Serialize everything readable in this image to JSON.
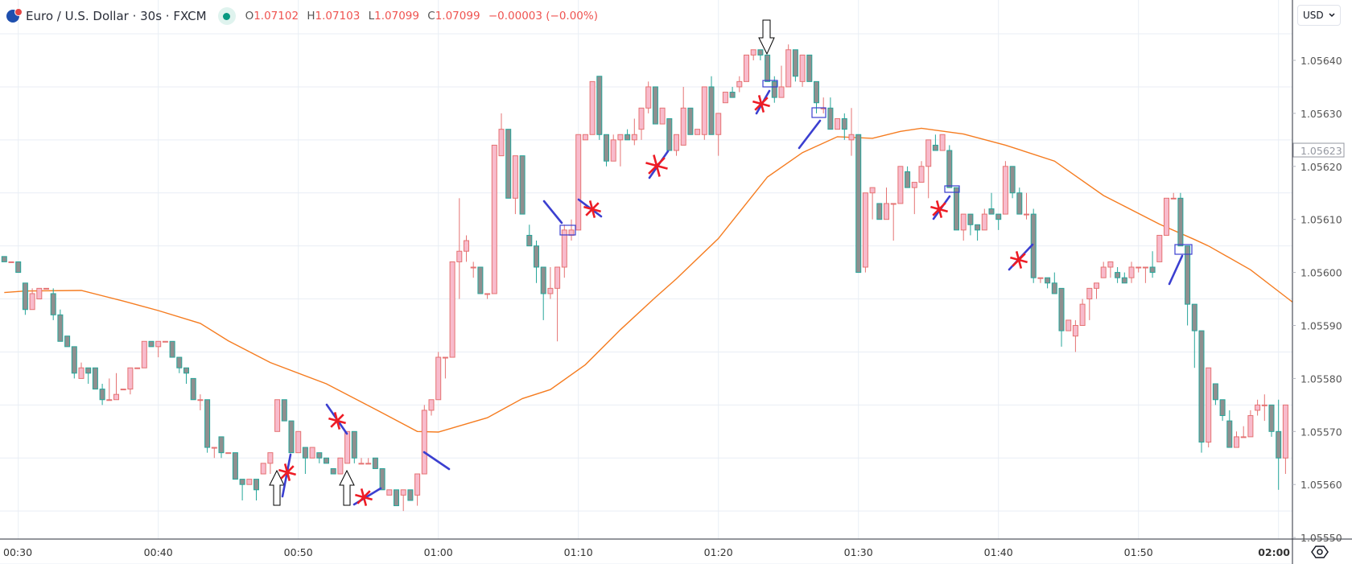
{
  "header": {
    "title": "Euro / U.S. Dollar · 30s · FXCM",
    "open_label": "O",
    "open": "1.07102",
    "high_label": "H",
    "high": "1.07103",
    "low_label": "L",
    "low": "1.07099",
    "close_label": "C",
    "close": "1.07099",
    "change": "−0.00003 (−0.00%)",
    "market_status": "open"
  },
  "currency_button": {
    "label": "USD",
    "icon": "chevron-down-icon"
  },
  "settings_icon": "eye-icon",
  "colors": {
    "up_fill": "#f8bbcc",
    "up_border": "#e57373",
    "down_fill": "#8f8f8f",
    "down_border": "#26a69a",
    "ema": "#f57c20",
    "annotation_blue": "#3b3fd0",
    "annotation_red": "#ee1c25",
    "grid": "#e9eef5"
  },
  "chart_data": {
    "type": "candlestick",
    "interval_seconds": 30,
    "x_start": "00:29:00",
    "ylim": [
      1.05545,
      1.0565
    ],
    "grid": true,
    "price_ticks": [
      "1.05640",
      "1.05630",
      "1.05620",
      "1.05610",
      "1.05600",
      "1.05590",
      "1.05580",
      "1.05570",
      "1.05560",
      "1.05550"
    ],
    "current_price_label": "1.05623",
    "time_ticks": [
      "00:30",
      "00:40",
      "00:50",
      "01:00",
      "01:10",
      "01:20",
      "01:30",
      "01:40",
      "01:50",
      "02:00"
    ],
    "ohlc": [
      [
        1.05603,
        1.05603,
        1.05602,
        1.05602
      ],
      [
        1.05602,
        1.05602,
        1.05602,
        1.05602
      ],
      [
        1.05602,
        1.05602,
        1.056,
        1.056
      ],
      [
        1.05598,
        1.05598,
        1.05592,
        1.05593
      ],
      [
        1.05593,
        1.05597,
        1.05593,
        1.05596
      ],
      [
        1.05595,
        1.05597,
        1.05595,
        1.05597
      ],
      [
        1.05597,
        1.05597,
        1.05597,
        1.05597
      ],
      [
        1.05596,
        1.05597,
        1.05591,
        1.05592
      ],
      [
        1.05592,
        1.05593,
        1.05587,
        1.05587
      ],
      [
        1.05588,
        1.05588,
        1.05586,
        1.05586
      ],
      [
        1.05586,
        1.05586,
        1.0558,
        1.05581
      ],
      [
        1.0558,
        1.05583,
        1.0558,
        1.05582
      ],
      [
        1.05582,
        1.05582,
        1.05579,
        1.05581
      ],
      [
        1.05582,
        1.05582,
        1.05578,
        1.05578
      ],
      [
        1.05578,
        1.05579,
        1.05575,
        1.05576
      ],
      [
        1.05576,
        1.0558,
        1.05576,
        1.05576
      ],
      [
        1.05576,
        1.05581,
        1.05576,
        1.05577
      ],
      [
        1.05578,
        1.05578,
        1.05578,
        1.05578
      ],
      [
        1.05578,
        1.05582,
        1.05577,
        1.05582
      ],
      [
        1.05582,
        1.05582,
        1.05582,
        1.05582
      ],
      [
        1.05582,
        1.05587,
        1.05582,
        1.05587
      ],
      [
        1.05587,
        1.05587,
        1.05586,
        1.05586
      ],
      [
        1.05586,
        1.05587,
        1.05584,
        1.05587
      ],
      [
        1.05587,
        1.05587,
        1.05587,
        1.05587
      ],
      [
        1.05587,
        1.05587,
        1.05584,
        1.05584
      ],
      [
        1.05584,
        1.05584,
        1.05581,
        1.05582
      ],
      [
        1.05582,
        1.05582,
        1.05579,
        1.05581
      ],
      [
        1.0558,
        1.0558,
        1.05576,
        1.05576
      ],
      [
        1.05576,
        1.05577,
        1.05574,
        1.05576
      ],
      [
        1.05576,
        1.05576,
        1.05566,
        1.05567
      ],
      [
        1.05567,
        1.05567,
        1.05565,
        1.05567
      ],
      [
        1.05569,
        1.05569,
        1.05565,
        1.05566
      ],
      [
        1.05566,
        1.05566,
        1.05566,
        1.05566
      ],
      [
        1.05566,
        1.05566,
        1.05561,
        1.05561
      ],
      [
        1.05561,
        1.05561,
        1.05557,
        1.0556
      ],
      [
        1.0556,
        1.05561,
        1.0556,
        1.05561
      ],
      [
        1.05561,
        1.05561,
        1.05557,
        1.05559
      ],
      [
        1.05562,
        1.05564,
        1.05562,
        1.05564
      ],
      [
        1.05564,
        1.05566,
        1.05562,
        1.05566
      ],
      [
        1.0557,
        1.05576,
        1.0557,
        1.05576
      ],
      [
        1.05576,
        1.05576,
        1.05572,
        1.05572
      ],
      [
        1.05572,
        1.05572,
        1.05566,
        1.05566
      ],
      [
        1.05566,
        1.0557,
        1.05566,
        1.0557
      ],
      [
        1.05567,
        1.05567,
        1.05562,
        1.05565
      ],
      [
        1.05565,
        1.05567,
        1.05565,
        1.05567
      ],
      [
        1.05566,
        1.05566,
        1.05564,
        1.05565
      ],
      [
        1.05565,
        1.05565,
        1.05564,
        1.05564
      ],
      [
        1.05563,
        1.05563,
        1.05562,
        1.05562
      ],
      [
        1.05562,
        1.05565,
        1.05562,
        1.05565
      ],
      [
        1.05564,
        1.0557,
        1.05564,
        1.0557
      ],
      [
        1.0557,
        1.0557,
        1.05564,
        1.05565
      ],
      [
        1.05564,
        1.05565,
        1.05564,
        1.05564
      ],
      [
        1.05564,
        1.05565,
        1.05564,
        1.05564
      ],
      [
        1.05565,
        1.05565,
        1.05563,
        1.05563
      ],
      [
        1.05563,
        1.05563,
        1.05559,
        1.05559
      ],
      [
        1.05558,
        1.05559,
        1.05558,
        1.05559
      ],
      [
        1.05559,
        1.05559,
        1.05556,
        1.05556
      ],
      [
        1.05558,
        1.05559,
        1.05555,
        1.05559
      ],
      [
        1.05559,
        1.05559,
        1.05557,
        1.05557
      ],
      [
        1.05558,
        1.05562,
        1.05556,
        1.05562
      ],
      [
        1.05562,
        1.05575,
        1.05562,
        1.05574
      ],
      [
        1.05574,
        1.05576,
        1.05573,
        1.05576
      ],
      [
        1.05576,
        1.05585,
        1.05576,
        1.05584
      ],
      [
        1.05584,
        1.05584,
        1.0558,
        1.05584
      ],
      [
        1.05584,
        1.05602,
        1.05584,
        1.05602
      ],
      [
        1.05602,
        1.05614,
        1.05595,
        1.05604
      ],
      [
        1.05604,
        1.05607,
        1.05602,
        1.05606
      ],
      [
        1.05601,
        1.05602,
        1.05599,
        1.05601
      ],
      [
        1.05601,
        1.05601,
        1.05596,
        1.05596
      ],
      [
        1.05596,
        1.05596,
        1.05595,
        1.05596
      ],
      [
        1.05596,
        1.05624,
        1.05596,
        1.05624
      ],
      [
        1.05622,
        1.0563,
        1.05622,
        1.05627
      ],
      [
        1.05627,
        1.05627,
        1.05614,
        1.05614
      ],
      [
        1.05614,
        1.05622,
        1.05611,
        1.05622
      ],
      [
        1.05622,
        1.05622,
        1.05611,
        1.05611
      ],
      [
        1.05607,
        1.05609,
        1.05605,
        1.05605
      ],
      [
        1.05605,
        1.05606,
        1.05598,
        1.05601
      ],
      [
        1.05601,
        1.05601,
        1.05591,
        1.05596
      ],
      [
        1.05596,
        1.05601,
        1.05595,
        1.05597
      ],
      [
        1.05597,
        1.05601,
        1.05587,
        1.05601
      ],
      [
        1.05601,
        1.05609,
        1.05599,
        1.05608
      ],
      [
        1.05607,
        1.0561,
        1.05606,
        1.05608
      ],
      [
        1.05608,
        1.05626,
        1.05608,
        1.05626
      ],
      [
        1.05625,
        1.05626,
        1.05625,
        1.05626
      ],
      [
        1.05626,
        1.05636,
        1.05626,
        1.05636
      ],
      [
        1.05637,
        1.05637,
        1.05625,
        1.05626
      ],
      [
        1.05626,
        1.05626,
        1.0562,
        1.05621
      ],
      [
        1.05621,
        1.05626,
        1.05621,
        1.05625
      ],
      [
        1.05625,
        1.05626,
        1.0562,
        1.05626
      ],
      [
        1.05626,
        1.05627,
        1.05625,
        1.05625
      ],
      [
        1.05625,
        1.05629,
        1.05624,
        1.05626
      ],
      [
        1.05627,
        1.05631,
        1.05625,
        1.05631
      ],
      [
        1.05631,
        1.05636,
        1.0563,
        1.05635
      ],
      [
        1.05635,
        1.05635,
        1.05628,
        1.05628
      ],
      [
        1.05628,
        1.05631,
        1.05628,
        1.05631
      ],
      [
        1.05629,
        1.05629,
        1.05623,
        1.05623
      ],
      [
        1.05623,
        1.05626,
        1.05622,
        1.05626
      ],
      [
        1.05624,
        1.05635,
        1.05624,
        1.05631
      ],
      [
        1.05631,
        1.05631,
        1.05626,
        1.05626
      ],
      [
        1.05626,
        1.05627,
        1.05626,
        1.05627
      ],
      [
        1.05626,
        1.05635,
        1.05625,
        1.05635
      ],
      [
        1.05635,
        1.05637,
        1.05626,
        1.05626
      ],
      [
        1.05626,
        1.0563,
        1.05622,
        1.0563
      ],
      [
        1.05632,
        1.05634,
        1.05632,
        1.05634
      ],
      [
        1.05634,
        1.05635,
        1.05633,
        1.05633
      ],
      [
        1.05635,
        1.05637,
        1.05634,
        1.05636
      ],
      [
        1.05636,
        1.05641,
        1.05636,
        1.05641
      ],
      [
        1.05641,
        1.05642,
        1.0564,
        1.05642
      ],
      [
        1.05642,
        1.05642,
        1.0564,
        1.05641
      ],
      [
        1.05641,
        1.05641,
        1.05636,
        1.05636
      ],
      [
        1.05636,
        1.05637,
        1.05632,
        1.05633
      ],
      [
        1.05633,
        1.05639,
        1.05633,
        1.05635
      ],
      [
        1.05635,
        1.05643,
        1.05635,
        1.05642
      ],
      [
        1.05642,
        1.05642,
        1.05636,
        1.05637
      ],
      [
        1.05636,
        1.05641,
        1.05635,
        1.05641
      ],
      [
        1.05641,
        1.05641,
        1.05636,
        1.05636
      ],
      [
        1.05636,
        1.05636,
        1.0563,
        1.05632
      ],
      [
        1.05631,
        1.05633,
        1.0563,
        1.05631
      ],
      [
        1.05631,
        1.05633,
        1.05627,
        1.05627
      ],
      [
        1.05627,
        1.05629,
        1.05627,
        1.05629
      ],
      [
        1.05629,
        1.0563,
        1.05625,
        1.05627
      ],
      [
        1.05625,
        1.05631,
        1.05622,
        1.05626
      ],
      [
        1.05626,
        1.05626,
        1.056,
        1.056
      ],
      [
        1.05601,
        1.05615,
        1.056,
        1.05615
      ],
      [
        1.05615,
        1.05616,
        1.0561,
        1.05616
      ],
      [
        1.05613,
        1.05613,
        1.0561,
        1.0561
      ],
      [
        1.0561,
        1.05616,
        1.0561,
        1.05613
      ],
      [
        1.05613,
        1.05613,
        1.05606,
        1.05613
      ],
      [
        1.05613,
        1.0562,
        1.05613,
        1.0562
      ],
      [
        1.05619,
        1.0562,
        1.05616,
        1.05616
      ],
      [
        1.05616,
        1.05617,
        1.05611,
        1.05617
      ],
      [
        1.05617,
        1.05621,
        1.05617,
        1.0562
      ],
      [
        1.0562,
        1.05625,
        1.05614,
        1.05625
      ],
      [
        1.05624,
        1.05626,
        1.05623,
        1.05623
      ],
      [
        1.05623,
        1.05626,
        1.05623,
        1.05626
      ],
      [
        1.05623,
        1.05624,
        1.05616,
        1.05616
      ],
      [
        1.05616,
        1.05616,
        1.05608,
        1.05608
      ],
      [
        1.05608,
        1.05611,
        1.05606,
        1.05611
      ],
      [
        1.05611,
        1.05611,
        1.05607,
        1.05609
      ],
      [
        1.05609,
        1.05609,
        1.05606,
        1.05608
      ],
      [
        1.05608,
        1.05612,
        1.05608,
        1.05611
      ],
      [
        1.05612,
        1.05615,
        1.05611,
        1.05611
      ],
      [
        1.05611,
        1.05611,
        1.05608,
        1.0561
      ],
      [
        1.05611,
        1.05621,
        1.05611,
        1.0562
      ],
      [
        1.0562,
        1.0562,
        1.05614,
        1.05615
      ],
      [
        1.05615,
        1.05616,
        1.05611,
        1.05611
      ],
      [
        1.05611,
        1.05615,
        1.0561,
        1.05611
      ],
      [
        1.05611,
        1.05612,
        1.05598,
        1.05599
      ],
      [
        1.05599,
        1.05599,
        1.05598,
        1.05599
      ],
      [
        1.05599,
        1.05599,
        1.05597,
        1.05598
      ],
      [
        1.05598,
        1.056,
        1.05596,
        1.05596
      ],
      [
        1.05597,
        1.05597,
        1.05586,
        1.05589
      ],
      [
        1.05589,
        1.05591,
        1.05589,
        1.05591
      ],
      [
        1.05588,
        1.05591,
        1.05585,
        1.0559
      ],
      [
        1.0559,
        1.05595,
        1.0559,
        1.05594
      ],
      [
        1.05595,
        1.05597,
        1.05591,
        1.05597
      ],
      [
        1.05597,
        1.05598,
        1.05595,
        1.05598
      ],
      [
        1.05599,
        1.05602,
        1.05599,
        1.05601
      ],
      [
        1.05601,
        1.05602,
        1.05599,
        1.05602
      ],
      [
        1.056,
        1.05601,
        1.05598,
        1.05599
      ],
      [
        1.05599,
        1.056,
        1.05598,
        1.05598
      ],
      [
        1.05599,
        1.05602,
        1.05598,
        1.05601
      ],
      [
        1.05601,
        1.05601,
        1.056,
        1.05601
      ],
      [
        1.05601,
        1.05601,
        1.05598,
        1.05601
      ],
      [
        1.05601,
        1.05604,
        1.05599,
        1.056
      ],
      [
        1.05602,
        1.05607,
        1.05602,
        1.05607
      ],
      [
        1.05607,
        1.05614,
        1.05607,
        1.05614
      ],
      [
        1.05614,
        1.05615,
        1.05614,
        1.05614
      ],
      [
        1.05614,
        1.05615,
        1.05605,
        1.05605
      ],
      [
        1.05605,
        1.05605,
        1.0559,
        1.05594
      ],
      [
        1.05594,
        1.05594,
        1.05582,
        1.05589
      ],
      [
        1.05589,
        1.05589,
        1.05566,
        1.05568
      ],
      [
        1.05568,
        1.05582,
        1.05567,
        1.05582
      ],
      [
        1.05579,
        1.05579,
        1.05575,
        1.05576
      ],
      [
        1.05576,
        1.05576,
        1.05572,
        1.05573
      ],
      [
        1.05572,
        1.05574,
        1.05567,
        1.05567
      ],
      [
        1.05567,
        1.0557,
        1.05567,
        1.05569
      ],
      [
        1.05569,
        1.05571,
        1.05569,
        1.05569
      ],
      [
        1.05569,
        1.05574,
        1.05569,
        1.05573
      ],
      [
        1.05574,
        1.05576,
        1.05573,
        1.05575
      ],
      [
        1.05575,
        1.05577,
        1.05572,
        1.05575
      ],
      [
        1.05575,
        1.05575,
        1.05569,
        1.0557
      ],
      [
        1.0557,
        1.05576,
        1.05559,
        1.05565
      ],
      [
        1.05565,
        1.05575,
        1.05562,
        1.05575
      ]
    ],
    "ema": [
      [
        -2,
        1.055962
      ],
      [
        1,
        1.055965
      ],
      [
        9,
        1.055966
      ],
      [
        15,
        1.055946
      ],
      [
        20,
        1.055928
      ],
      [
        26,
        1.055904
      ],
      [
        30,
        1.055871
      ],
      [
        36,
        1.05583
      ],
      [
        44,
        1.05579
      ],
      [
        52,
        1.055735
      ],
      [
        57,
        1.0557
      ],
      [
        60,
        1.055699
      ],
      [
        67,
        1.055726
      ],
      [
        72,
        1.055762
      ],
      [
        76,
        1.055779
      ],
      [
        81,
        1.055826
      ],
      [
        86,
        1.055892
      ],
      [
        91,
        1.055953
      ],
      [
        94,
        1.055988
      ],
      [
        100,
        1.056064
      ],
      [
        107,
        1.05618
      ],
      [
        112,
        1.056226
      ],
      [
        117,
        1.056256
      ],
      [
        122,
        1.056253
      ],
      [
        126,
        1.056266
      ],
      [
        129,
        1.056272
      ],
      [
        135,
        1.056261
      ],
      [
        141,
        1.05624
      ],
      [
        148,
        1.05621
      ],
      [
        155,
        1.056145
      ],
      [
        163,
        1.056091
      ],
      [
        168,
        1.056062
      ],
      [
        170,
        1.05605
      ],
      [
        176,
        1.056005
      ],
      [
        182,
        1.055944
      ]
    ]
  }
}
